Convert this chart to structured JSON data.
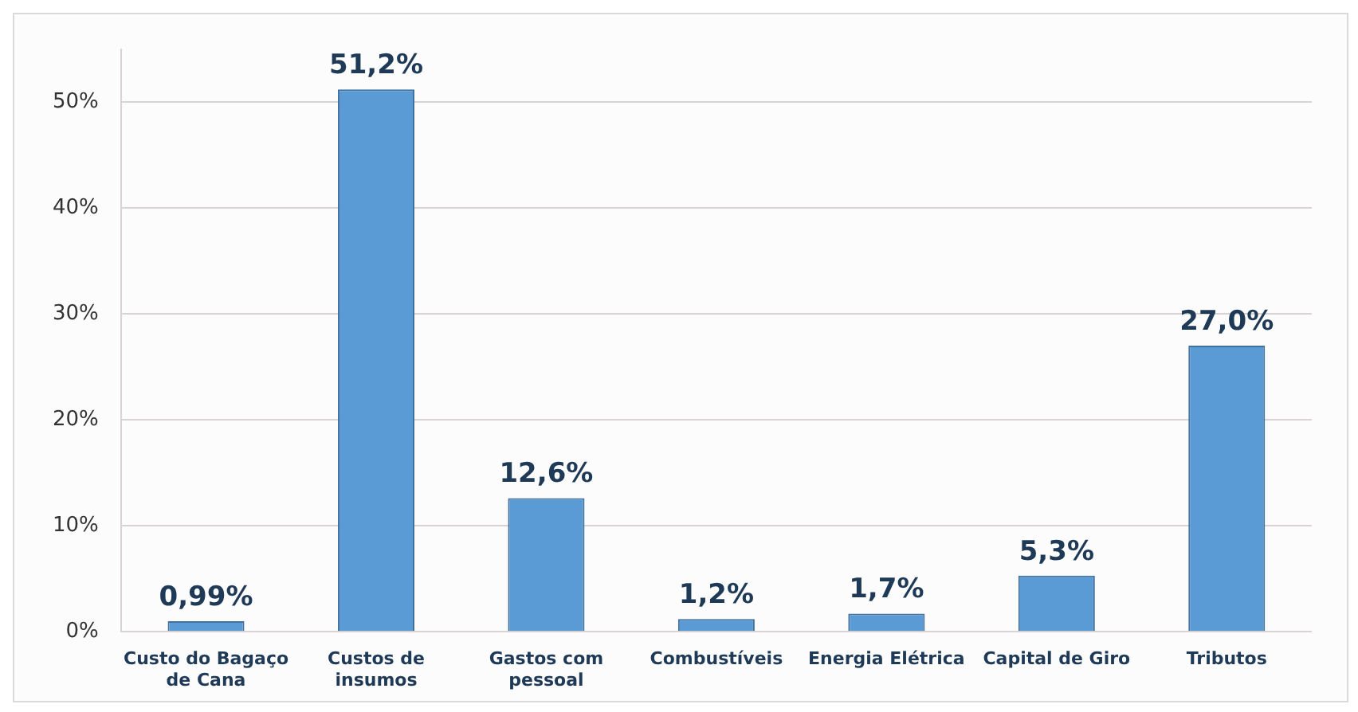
{
  "chart_data": {
    "type": "bar",
    "categories": [
      "Custo do Bagaço de Cana",
      "Custos de insumos",
      "Gastos com pessoal",
      "Combustíveis",
      "Energia Elétrica",
      "Capital de Giro",
      "Tributos"
    ],
    "values": [
      0.99,
      51.2,
      12.6,
      1.2,
      1.7,
      5.3,
      27.0
    ],
    "value_labels": [
      "0,99%",
      "51,2%",
      "12,6%",
      "1,2%",
      "1,7%",
      "5,3%",
      "27,0%"
    ],
    "color": "#5b9bd5",
    "ylim": [
      0,
      55
    ],
    "yticks": [
      {
        "value": 0,
        "label": "0%"
      },
      {
        "value": 10,
        "label": "10%"
      },
      {
        "value": 20,
        "label": "20%"
      },
      {
        "value": 30,
        "label": "30%"
      },
      {
        "value": 40,
        "label": "40%"
      },
      {
        "value": 50,
        "label": "50%"
      }
    ],
    "grid": "y",
    "legend": false
  }
}
